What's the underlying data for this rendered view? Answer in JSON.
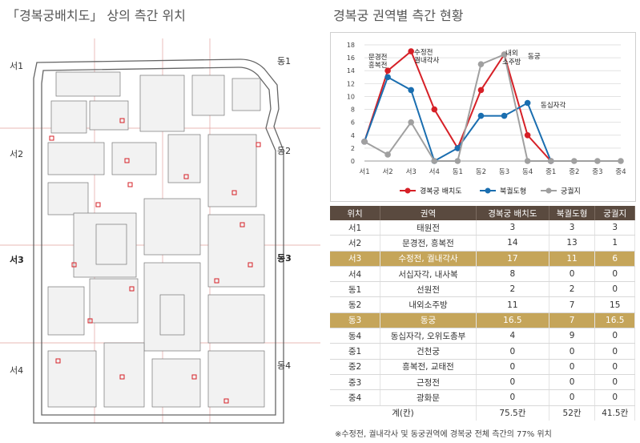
{
  "left_title": "「경복궁배치도」 상의 측간 위치",
  "right_title": "경복궁 권역별 측간 현황",
  "map_labels": [
    "서1",
    "동1",
    "서2",
    "동2",
    "서3",
    "동3",
    "서4",
    "동4"
  ],
  "colors": {
    "palace_map": "#d62027",
    "north_map": "#1a6eb0",
    "records": "#a0a0a0",
    "header": "#5a4a3f",
    "highlight": "#c5a55a"
  },
  "chart_data": {
    "type": "line",
    "title": "",
    "xlabel": "",
    "ylabel": "",
    "x": [
      "서1",
      "서2",
      "서3",
      "서4",
      "동1",
      "동2",
      "동3",
      "동4",
      "중1",
      "중2",
      "중3",
      "중4"
    ],
    "ylim": [
      0,
      18
    ],
    "yticks": [
      0,
      2,
      4,
      6,
      8,
      10,
      12,
      14,
      16,
      18
    ],
    "grid": true,
    "legend_position": "bottom",
    "series": [
      {
        "name": "경복궁 배치도",
        "color": "#d62027",
        "values": [
          3,
          14,
          17,
          8,
          2,
          11,
          16.5,
          4,
          0,
          null,
          null,
          null
        ]
      },
      {
        "name": "북궐도형",
        "color": "#1a6eb0",
        "values": [
          3,
          13,
          11,
          0,
          2,
          7,
          7,
          9,
          0,
          null,
          null,
          null
        ]
      },
      {
        "name": "궁궐지",
        "color": "#a0a0a0",
        "values": [
          3,
          1,
          6,
          0,
          0,
          15,
          16.5,
          0,
          0,
          0,
          0,
          0
        ]
      }
    ],
    "annotations": [
      {
        "text": "문경전",
        "x": "서2",
        "y": 14
      },
      {
        "text": "흥복전",
        "x": "서2",
        "y": 14
      },
      {
        "text": "수정전",
        "x": "서3",
        "y": 17
      },
      {
        "text": "궐내각사",
        "x": "서3",
        "y": 17
      },
      {
        "text": "내외",
        "x": "동2",
        "y": 15
      },
      {
        "text": "소주방",
        "x": "동2",
        "y": 15
      },
      {
        "text": "동궁",
        "x": "동3",
        "y": 16.5
      },
      {
        "text": "동십자각",
        "x": "동4",
        "y": 9
      }
    ]
  },
  "table": {
    "headers": [
      "위치",
      "권역",
      "경복궁 배치도",
      "북궐도형",
      "궁궐지"
    ],
    "rows": [
      {
        "pos": "서1",
        "area": "태원전",
        "a": "3",
        "b": "3",
        "c": "3",
        "hl": false
      },
      {
        "pos": "서2",
        "area": "문경전, 흥복전",
        "a": "14",
        "b": "13",
        "c": "1",
        "hl": false
      },
      {
        "pos": "서3",
        "area": "수정전, 궐내각사",
        "a": "17",
        "b": "11",
        "c": "6",
        "hl": true
      },
      {
        "pos": "서4",
        "area": "서십자각, 내사복",
        "a": "8",
        "b": "0",
        "c": "0",
        "hl": false
      },
      {
        "pos": "동1",
        "area": "선원전",
        "a": "2",
        "b": "2",
        "c": "0",
        "hl": false
      },
      {
        "pos": "동2",
        "area": "내외소주방",
        "a": "11",
        "b": "7",
        "c": "15",
        "hl": false
      },
      {
        "pos": "동3",
        "area": "동궁",
        "a": "16.5",
        "b": "7",
        "c": "16.5",
        "hl": true
      },
      {
        "pos": "동4",
        "area": "동십자각, 오위도총부",
        "a": "4",
        "b": "9",
        "c": "0",
        "hl": false
      },
      {
        "pos": "중1",
        "area": "건천궁",
        "a": "0",
        "b": "0",
        "c": "0",
        "hl": false
      },
      {
        "pos": "중2",
        "area": "흥복전, 교태전",
        "a": "0",
        "b": "0",
        "c": "0",
        "hl": false
      },
      {
        "pos": "중3",
        "area": "근정전",
        "a": "0",
        "b": "0",
        "c": "0",
        "hl": false
      },
      {
        "pos": "중4",
        "area": "광화문",
        "a": "0",
        "b": "0",
        "c": "0",
        "hl": false
      }
    ],
    "total": {
      "label": "계(칸)",
      "a": "75.5칸",
      "b": "52칸",
      "c": "41.5칸"
    }
  },
  "note": "※수정전, 궐내각사 및 동궁권역에 경복궁 전체 측간의 77% 위치"
}
